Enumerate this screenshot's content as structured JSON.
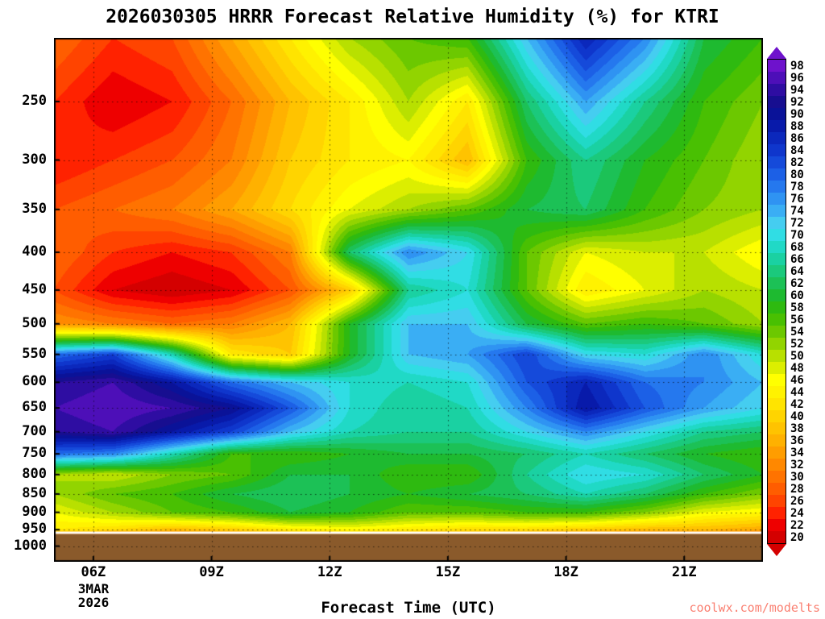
{
  "watermark": "coolwx.com/modelts",
  "colors": {
    "watermark": "#fa8072",
    "ground": "#8a5a2b",
    "frame": "#000000",
    "background": "#ffffff",
    "grid": "rgba(0,0,0,0.65)"
  },
  "chart_data": {
    "type": "heatmap",
    "title": "2026030305 HRRR Forecast Relative Humidity (%) for KTRI",
    "xlabel": "Forecast Time (UTC)",
    "date_lines": [
      "3MAR",
      "2026"
    ],
    "x_tick_labels": [
      "06Z",
      "09Z",
      "12Z",
      "15Z",
      "18Z",
      "21Z"
    ],
    "x_tick_hours": [
      6,
      9,
      12,
      15,
      18,
      21
    ],
    "y_tick_labels": [
      250,
      300,
      350,
      400,
      450,
      500,
      550,
      600,
      650,
      700,
      750,
      800,
      850,
      900,
      950,
      1000
    ],
    "x_range": [
      5,
      23
    ],
    "p_range": [
      205,
      1050
    ],
    "grid": "dotted",
    "legend_position": "right",
    "x": [
      5,
      6.5,
      8,
      9.5,
      11,
      12.5,
      14,
      15.5,
      17,
      18.5,
      20,
      21.5,
      23
    ],
    "pressure_levels": [
      205,
      250,
      300,
      350,
      400,
      450,
      500,
      550,
      600,
      650,
      700,
      750,
      800,
      850,
      900,
      950,
      963
    ],
    "values": [
      [
        30,
        26,
        28,
        36,
        44,
        52,
        56,
        58,
        74,
        88,
        78,
        62,
        58
      ],
      [
        26,
        22,
        24,
        30,
        38,
        44,
        52,
        44,
        64,
        76,
        66,
        58,
        54
      ],
      [
        24,
        26,
        28,
        32,
        40,
        44,
        46,
        38,
        58,
        66,
        60,
        56,
        52
      ],
      [
        28,
        30,
        32,
        36,
        42,
        48,
        52,
        56,
        62,
        64,
        58,
        54,
        52
      ],
      [
        30,
        26,
        24,
        26,
        32,
        64,
        78,
        72,
        56,
        48,
        50,
        50,
        46
      ],
      [
        28,
        22,
        20,
        22,
        28,
        40,
        66,
        70,
        56,
        44,
        48,
        52,
        50
      ],
      [
        34,
        32,
        30,
        32,
        38,
        60,
        74,
        74,
        62,
        56,
        58,
        56,
        52
      ],
      [
        80,
        84,
        68,
        44,
        40,
        60,
        74,
        76,
        84,
        72,
        70,
        78,
        70
      ],
      [
        94,
        96,
        90,
        80,
        74,
        70,
        68,
        70,
        82,
        88,
        80,
        78,
        74
      ],
      [
        96,
        98,
        96,
        92,
        82,
        70,
        66,
        68,
        78,
        90,
        82,
        76,
        72
      ],
      [
        94,
        96,
        90,
        84,
        74,
        68,
        66,
        66,
        72,
        78,
        72,
        66,
        64
      ],
      [
        80,
        78,
        68,
        58,
        58,
        60,
        62,
        62,
        64,
        68,
        64,
        60,
        58
      ],
      [
        52,
        50,
        54,
        56,
        62,
        62,
        58,
        58,
        66,
        72,
        70,
        64,
        60
      ],
      [
        52,
        56,
        58,
        62,
        64,
        62,
        60,
        62,
        64,
        68,
        64,
        58,
        54
      ],
      [
        48,
        52,
        56,
        58,
        62,
        60,
        56,
        56,
        58,
        58,
        54,
        48,
        46
      ],
      [
        44,
        42,
        38,
        40,
        44,
        46,
        44,
        42,
        42,
        40,
        38,
        38,
        36
      ],
      [
        34,
        32,
        32,
        34,
        36,
        38,
        36,
        34,
        34,
        32,
        32,
        32,
        30
      ]
    ],
    "levels_min": 20,
    "levels_step": 2,
    "colorbar_ticks": [
      98,
      96,
      94,
      92,
      90,
      88,
      86,
      84,
      82,
      80,
      78,
      76,
      74,
      72,
      70,
      68,
      66,
      64,
      62,
      60,
      58,
      56,
      54,
      52,
      50,
      48,
      46,
      44,
      42,
      40,
      38,
      36,
      34,
      32,
      30,
      28,
      26,
      24,
      22,
      20
    ],
    "palette": [
      "#d40000",
      "#ee0000",
      "#ff2200",
      "#ff4400",
      "#ff5d00",
      "#ff7300",
      "#ff8800",
      "#ff9d00",
      "#ffb100",
      "#ffc300",
      "#ffd400",
      "#ffe400",
      "#fff200",
      "#ffff00",
      "#dcee00",
      "#b8e000",
      "#92d400",
      "#6cc800",
      "#49c002",
      "#2eba10",
      "#1eba30",
      "#1cc156",
      "#1bc97c",
      "#1ad1a2",
      "#20d9c6",
      "#30dde4",
      "#45cdf0",
      "#3aaef4",
      "#2f93f2",
      "#2578ee",
      "#1c60e6",
      "#154ada",
      "#0f36cc",
      "#0b28bc",
      "#081aaa",
      "#0a1298",
      "#170e90",
      "#2e0da2",
      "#4d0fb8",
      "#6e12cc"
    ],
    "ground_pressure": 963
  }
}
